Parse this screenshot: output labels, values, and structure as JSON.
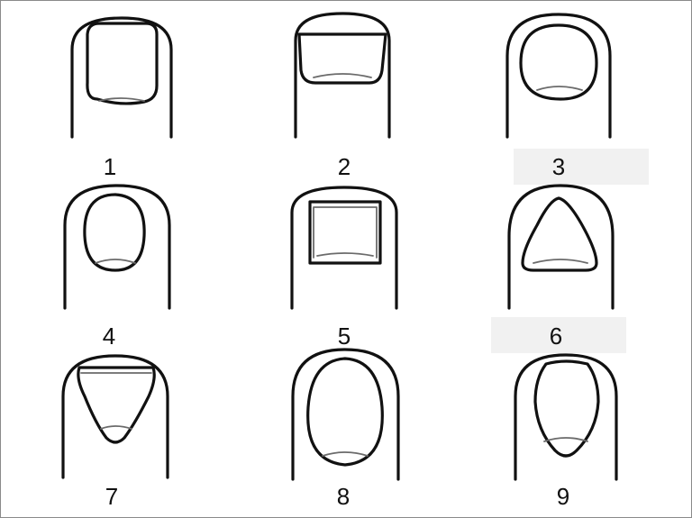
{
  "nails": [
    {
      "label": "1",
      "shape": "square"
    },
    {
      "label": "2",
      "shape": "short-wide"
    },
    {
      "label": "3",
      "shape": "round"
    },
    {
      "label": "4",
      "shape": "oval"
    },
    {
      "label": "5",
      "shape": "rectangular"
    },
    {
      "label": "6",
      "shape": "triangular"
    },
    {
      "label": "7",
      "shape": "inverted-triangle"
    },
    {
      "label": "8",
      "shape": "long-oval"
    },
    {
      "label": "9",
      "shape": "inverted-oval"
    }
  ]
}
